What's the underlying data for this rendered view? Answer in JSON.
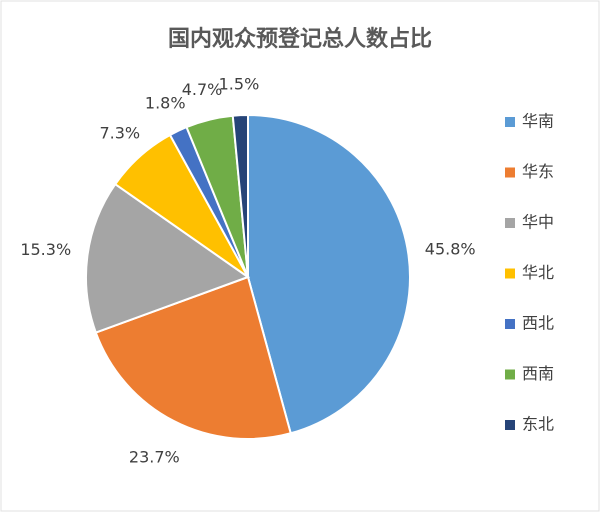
{
  "chart_data": {
    "type": "pie",
    "title": "国内观众预登记总人数占比",
    "categories": [
      "华南",
      "华东",
      "华中",
      "华北",
      "西北",
      "西南",
      "东北"
    ],
    "values": [
      45.8,
      23.7,
      15.3,
      7.3,
      1.8,
      4.7,
      1.5
    ],
    "value_labels": [
      "45.8%",
      "23.7%",
      "15.3%",
      "7.3%",
      "1.8%",
      "4.7%",
      "1.5%"
    ],
    "colors": [
      "#5b9bd5",
      "#ed7d31",
      "#a5a5a5",
      "#ffc000",
      "#4472c4",
      "#70ad47",
      "#264478"
    ],
    "legend": "right"
  }
}
